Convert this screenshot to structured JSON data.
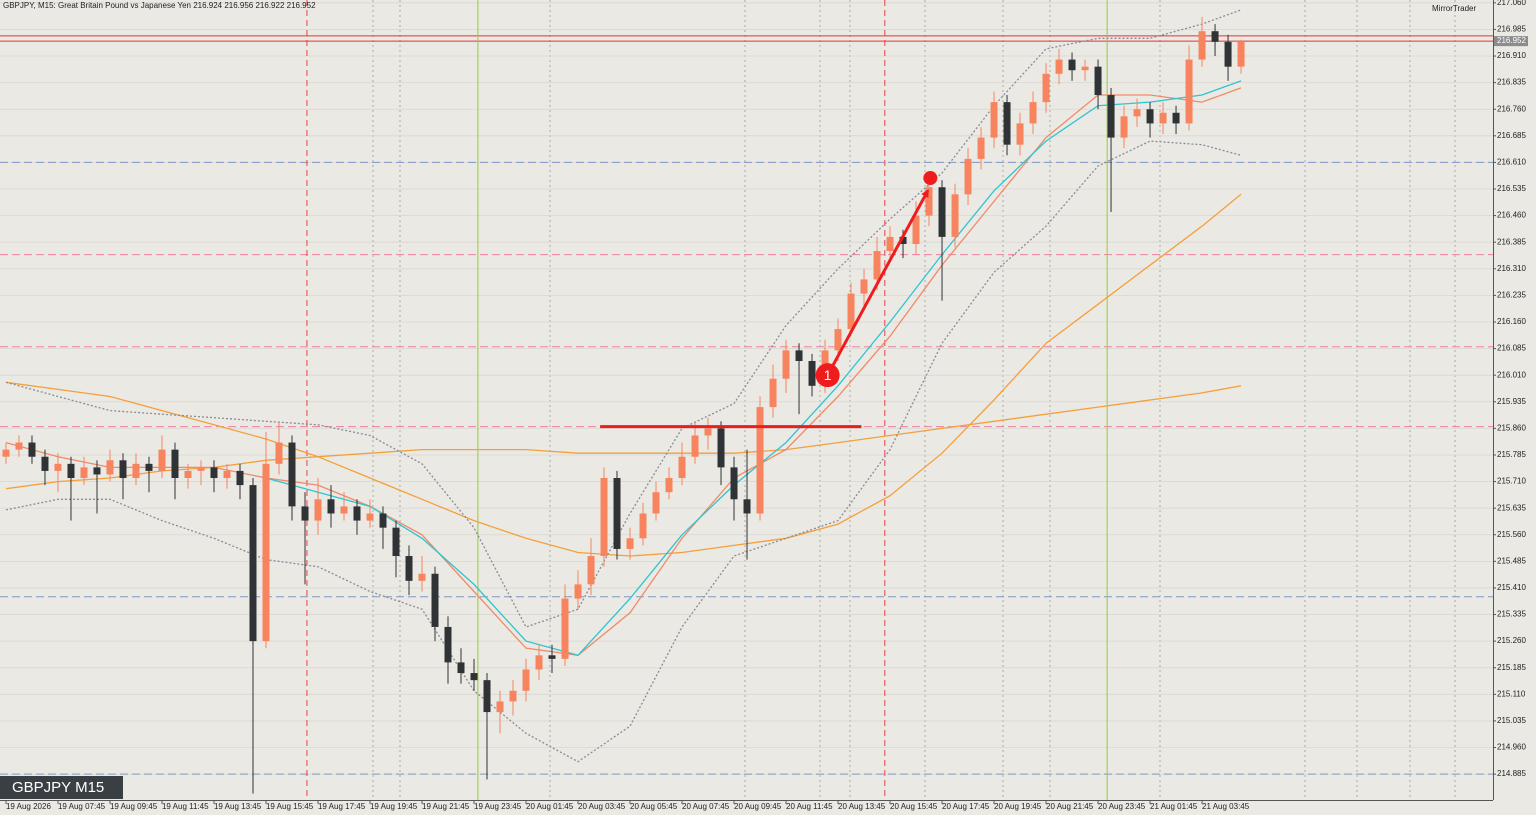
{
  "chart_data": {
    "type": "candlestick",
    "title": "GBPJPY, M15:  Great Britain Pound vs Japanese Yen  216.924 216.956 216.922 216.952",
    "platform": "MirrorTrader",
    "badge": "GBPJPY M15",
    "up_color": "#f7845e",
    "down_color": "#2f3336",
    "xlim": [
      -0.46,
      114.38
    ],
    "ylim": [
      214.812,
      217.068
    ],
    "yticks": [
      {
        "value": 217.06,
        "label": "217.060"
      },
      216.985,
      {
        "value": 216.91,
        "label": "216.910"
      },
      216.835,
      {
        "value": 216.76,
        "label": "216.760"
      },
      216.685,
      {
        "value": 216.61,
        "label": "216.610"
      },
      216.535,
      {
        "value": 216.46,
        "label": "216.460"
      },
      216.385,
      {
        "value": 216.31,
        "label": "216.310"
      },
      216.235,
      {
        "value": 216.16,
        "label": "216.160"
      },
      216.085,
      {
        "value": 216.01,
        "label": "216.010"
      },
      215.935,
      {
        "value": 215.86,
        "label": "215.860"
      },
      215.785,
      {
        "value": 215.71,
        "label": "215.710"
      },
      215.635,
      {
        "value": 215.56,
        "label": "215.560"
      },
      215.485,
      {
        "value": 215.41,
        "label": "215.410"
      },
      215.335,
      {
        "value": 215.26,
        "label": "215.260"
      },
      215.185,
      {
        "value": 215.11,
        "label": "215.110"
      },
      215.035,
      {
        "value": 214.96,
        "label": "214.960"
      },
      214.885
    ],
    "xticks": [
      {
        "value": 0,
        "label": "19 Aug 2026"
      },
      {
        "value": 4,
        "label": "19 Aug 07:45"
      },
      {
        "value": 8,
        "label": "19 Aug 09:45"
      },
      {
        "value": 12,
        "label": "19 Aug 11:45"
      },
      {
        "value": 16,
        "label": "19 Aug 13:45"
      },
      {
        "value": 20,
        "label": "19 Aug 15:45"
      },
      {
        "value": 24,
        "label": "19 Aug 17:45"
      },
      {
        "value": 28,
        "label": "19 Aug 19:45"
      },
      {
        "value": 32,
        "label": "19 Aug 21:45"
      },
      {
        "value": 36,
        "label": "19 Aug 23:45"
      },
      {
        "value": 40,
        "label": "20 Aug 01:45"
      },
      {
        "value": 44,
        "label": "20 Aug 03:45"
      },
      {
        "value": 48,
        "label": "20 Aug 05:45"
      },
      {
        "value": 52,
        "label": "20 Aug 07:45"
      },
      {
        "value": 56,
        "label": "20 Aug 09:45"
      },
      {
        "value": 60,
        "label": "20 Aug 11:45"
      },
      {
        "value": 64,
        "label": "20 Aug 13:45"
      },
      {
        "value": 68,
        "label": "20 Aug 15:45"
      },
      {
        "value": 72,
        "label": "20 Aug 17:45"
      },
      {
        "value": 76,
        "label": "20 Aug 19:45"
      },
      {
        "value": 80,
        "label": "20 Aug 21:45"
      },
      {
        "value": 84,
        "label": "20 Aug 23:45"
      },
      {
        "value": 88,
        "label": "21 Aug 01:45"
      },
      {
        "value": 92,
        "label": "21 Aug 03:45"
      }
    ],
    "candles": [
      [
        215.78,
        215.82,
        215.76,
        215.8
      ],
      [
        215.8,
        215.84,
        215.78,
        215.82
      ],
      [
        215.82,
        215.84,
        215.76,
        215.78
      ],
      [
        215.78,
        215.8,
        215.7,
        215.74
      ],
      [
        215.74,
        215.79,
        215.68,
        215.76
      ],
      [
        215.76,
        215.78,
        215.6,
        215.72
      ],
      [
        215.72,
        215.78,
        215.7,
        215.75
      ],
      [
        215.75,
        215.77,
        215.62,
        215.73
      ],
      [
        215.73,
        215.8,
        215.71,
        215.77
      ],
      [
        215.77,
        215.79,
        215.66,
        215.72
      ],
      [
        215.72,
        215.79,
        215.7,
        215.76
      ],
      [
        215.76,
        215.78,
        215.68,
        215.74
      ],
      [
        215.74,
        215.84,
        215.72,
        215.8
      ],
      [
        215.8,
        215.82,
        215.66,
        215.72
      ],
      [
        215.72,
        215.76,
        215.69,
        215.74
      ],
      [
        215.74,
        215.77,
        215.7,
        215.75
      ],
      [
        215.75,
        215.77,
        215.68,
        215.72
      ],
      [
        215.72,
        215.76,
        215.69,
        215.74
      ],
      [
        215.74,
        215.76,
        215.66,
        215.7
      ],
      [
        215.7,
        215.72,
        214.83,
        215.26
      ],
      [
        215.26,
        215.85,
        215.24,
        215.76
      ],
      [
        215.76,
        215.88,
        215.73,
        215.82
      ],
      [
        215.82,
        215.84,
        215.6,
        215.64
      ],
      [
        215.64,
        215.68,
        215.42,
        215.6
      ],
      [
        215.6,
        215.72,
        215.56,
        215.66
      ],
      [
        215.66,
        215.7,
        215.58,
        215.62
      ],
      [
        215.62,
        215.68,
        215.6,
        215.64
      ],
      [
        215.64,
        215.66,
        215.56,
        215.6
      ],
      [
        215.6,
        215.66,
        215.58,
        215.62
      ],
      [
        215.62,
        215.64,
        215.52,
        215.58
      ],
      [
        215.58,
        215.6,
        215.44,
        215.5
      ],
      [
        215.5,
        215.53,
        215.39,
        215.43
      ],
      [
        215.43,
        215.5,
        215.4,
        215.45
      ],
      [
        215.45,
        215.47,
        215.26,
        215.3
      ],
      [
        215.3,
        215.33,
        215.14,
        215.2
      ],
      [
        215.2,
        215.24,
        215.14,
        215.17
      ],
      [
        215.17,
        215.21,
        215.12,
        215.15
      ],
      [
        215.15,
        215.17,
        214.87,
        215.06
      ],
      [
        215.06,
        215.12,
        215.0,
        215.09
      ],
      [
        215.09,
        215.15,
        215.05,
        215.12
      ],
      [
        215.12,
        215.21,
        215.09,
        215.18
      ],
      [
        215.18,
        215.25,
        215.15,
        215.22
      ],
      [
        215.22,
        215.25,
        215.17,
        215.21
      ],
      [
        215.21,
        215.42,
        215.19,
        215.38
      ],
      [
        215.38,
        215.46,
        215.35,
        215.42
      ],
      [
        215.42,
        215.55,
        215.39,
        215.5
      ],
      [
        215.5,
        215.75,
        215.47,
        215.72
      ],
      [
        215.72,
        215.74,
        215.49,
        215.52
      ],
      [
        215.52,
        215.58,
        215.49,
        215.55
      ],
      [
        215.55,
        215.65,
        215.53,
        215.62
      ],
      [
        215.62,
        215.71,
        215.6,
        215.68
      ],
      [
        215.68,
        215.75,
        215.66,
        215.72
      ],
      [
        215.72,
        215.82,
        215.7,
        215.78
      ],
      [
        215.78,
        215.88,
        215.76,
        215.84
      ],
      [
        215.84,
        215.89,
        215.8,
        215.86
      ],
      [
        215.86,
        215.88,
        215.7,
        215.75
      ],
      [
        215.75,
        215.78,
        215.6,
        215.66
      ],
      [
        215.66,
        215.8,
        215.49,
        215.62
      ],
      [
        215.62,
        215.95,
        215.6,
        215.92
      ],
      [
        215.92,
        216.04,
        215.89,
        216.0
      ],
      [
        216.0,
        216.11,
        215.96,
        216.08
      ],
      [
        216.08,
        216.1,
        215.9,
        216.05
      ],
      [
        216.05,
        216.07,
        215.95,
        215.98
      ],
      [
        215.98,
        216.11,
        215.96,
        216.08
      ],
      [
        216.08,
        216.17,
        216.05,
        216.14
      ],
      [
        216.14,
        216.27,
        216.12,
        216.24
      ],
      [
        216.24,
        216.31,
        216.2,
        216.28
      ],
      [
        216.28,
        216.4,
        216.25,
        216.36
      ],
      [
        216.36,
        216.43,
        216.33,
        216.4
      ],
      [
        216.4,
        216.42,
        216.34,
        216.38
      ],
      [
        216.38,
        216.5,
        216.35,
        216.46
      ],
      [
        216.46,
        216.57,
        216.43,
        216.54
      ],
      [
        216.54,
        216.56,
        216.22,
        216.4
      ],
      [
        216.4,
        216.55,
        216.37,
        216.52
      ],
      [
        216.52,
        216.65,
        216.49,
        216.62
      ],
      [
        216.62,
        216.71,
        216.59,
        216.68
      ],
      [
        216.68,
        216.81,
        216.65,
        216.78
      ],
      [
        216.78,
        216.8,
        216.63,
        216.66
      ],
      [
        216.66,
        216.75,
        216.63,
        216.72
      ],
      [
        216.72,
        216.81,
        216.69,
        216.78
      ],
      [
        216.78,
        216.89,
        216.75,
        216.86
      ],
      [
        216.86,
        216.93,
        216.83,
        216.9
      ],
      [
        216.9,
        216.92,
        216.84,
        216.87
      ],
      [
        216.87,
        216.9,
        216.84,
        216.88
      ],
      [
        216.88,
        216.9,
        216.76,
        216.8
      ],
      [
        216.8,
        216.82,
        216.47,
        216.68
      ],
      [
        216.68,
        216.77,
        216.65,
        216.74
      ],
      [
        216.74,
        216.79,
        216.71,
        216.76
      ],
      [
        216.76,
        216.78,
        216.68,
        216.72
      ],
      [
        216.72,
        216.78,
        216.69,
        216.75
      ],
      [
        216.75,
        216.77,
        216.69,
        216.72
      ],
      [
        216.72,
        216.94,
        216.7,
        216.9
      ],
      [
        216.9,
        217.02,
        216.88,
        216.98
      ],
      [
        216.98,
        217.0,
        216.91,
        216.95
      ],
      [
        216.95,
        216.97,
        216.84,
        216.88
      ],
      [
        216.88,
        216.956,
        216.86,
        216.952
      ]
    ],
    "indicators": [
      {
        "color": "#f4a03a",
        "dash": "",
        "x": [
          0,
          4,
          8,
          12,
          16,
          20,
          24,
          28,
          32,
          36,
          40,
          44,
          48,
          52,
          56,
          60,
          64,
          68,
          72,
          76,
          80,
          84,
          88,
          92,
          95
        ],
        "values": [
          215.99,
          215.97,
          215.95,
          215.91,
          215.87,
          215.83,
          215.78,
          215.72,
          215.66,
          215.6,
          215.55,
          215.51,
          215.5,
          215.51,
          215.53,
          215.55,
          215.59,
          215.67,
          215.79,
          215.94,
          216.1,
          216.21,
          216.32,
          216.43,
          216.52
        ]
      },
      {
        "color": "#f4a03a",
        "dash": "",
        "x": [
          0,
          4,
          8,
          12,
          16,
          20,
          24,
          28,
          32,
          36,
          40,
          44,
          48,
          52,
          56,
          60,
          64,
          68,
          72,
          76,
          80,
          84,
          88,
          92,
          95
        ],
        "values": [
          215.69,
          215.71,
          215.72,
          215.74,
          215.75,
          215.77,
          215.78,
          215.79,
          215.8,
          215.8,
          215.8,
          215.79,
          215.79,
          215.79,
          215.79,
          215.8,
          215.82,
          215.84,
          215.86,
          215.88,
          215.9,
          215.92,
          215.94,
          215.96,
          215.98
        ]
      },
      {
        "color": "#f08a6a",
        "dash": "",
        "x": [
          0,
          4,
          8,
          12,
          16,
          20,
          24,
          28,
          32,
          36,
          40,
          44,
          48,
          52,
          56,
          60,
          64,
          68,
          72,
          76,
          80,
          84,
          88,
          92,
          95
        ],
        "values": [
          215.82,
          215.78,
          215.75,
          215.75,
          215.75,
          215.72,
          215.7,
          215.64,
          215.56,
          215.4,
          215.24,
          215.22,
          215.34,
          215.55,
          215.72,
          215.8,
          215.95,
          216.12,
          216.32,
          216.5,
          216.68,
          216.8,
          216.8,
          216.78,
          216.82
        ]
      },
      {
        "color": "#2ec4d0",
        "dash": "",
        "x": [
          20,
          24,
          28,
          32,
          36,
          40,
          44,
          48,
          52,
          56,
          60,
          64,
          68,
          72,
          76,
          80,
          84,
          88,
          92,
          95
        ],
        "values": [
          215.72,
          215.68,
          215.64,
          215.55,
          215.42,
          215.26,
          215.22,
          215.38,
          215.56,
          215.7,
          215.82,
          215.98,
          216.16,
          216.35,
          216.53,
          216.67,
          216.77,
          216.78,
          216.8,
          216.84
        ]
      },
      {
        "color": "#8a8a9a",
        "dash": "2 2",
        "x": [
          0,
          4,
          8,
          12,
          16,
          20,
          24,
          28,
          32,
          36,
          40,
          44,
          48,
          52,
          56,
          60,
          64,
          68,
          72,
          76,
          80,
          84,
          88,
          92,
          95
        ],
        "values": [
          215.99,
          215.95,
          215.91,
          215.9,
          215.89,
          215.88,
          215.87,
          215.84,
          215.76,
          215.58,
          215.3,
          215.35,
          215.62,
          215.86,
          215.93,
          216.15,
          216.31,
          216.45,
          216.58,
          216.77,
          216.93,
          216.96,
          216.96,
          217.0,
          217.04
        ]
      },
      {
        "color": "#8a8a9a",
        "dash": "2 2",
        "x": [
          0,
          4,
          8,
          12,
          16,
          20,
          24,
          28,
          32,
          36,
          40,
          44,
          48,
          52,
          56,
          60,
          64,
          68,
          72,
          76,
          80,
          84,
          88,
          92,
          95
        ],
        "values": [
          215.63,
          215.66,
          215.66,
          215.6,
          215.55,
          215.49,
          215.47,
          215.4,
          215.35,
          215.12,
          215.0,
          214.92,
          215.02,
          215.3,
          215.5,
          215.55,
          215.6,
          215.8,
          216.1,
          216.3,
          216.43,
          216.6,
          216.67,
          216.66,
          216.63
        ]
      }
    ],
    "levels": [
      {
        "value": 216.61,
        "color": "#7f97c4",
        "dash": "8 4"
      },
      {
        "value": 215.385,
        "color": "#7f97c4",
        "dash": "8 4"
      },
      {
        "value": 214.885,
        "color": "#7f97c4",
        "dash": "8 4"
      },
      {
        "value": 216.35,
        "color": "#ec7fa0",
        "dash": "8 4"
      },
      {
        "value": 216.09,
        "color": "#ec7fa0",
        "dash": "8 4"
      },
      {
        "value": 215.865,
        "color": "#ec7fa0",
        "dash": "8 4"
      },
      {
        "value": 216.967,
        "color": "#e03434",
        "dash": ""
      },
      {
        "value": 216.952,
        "color": "#e03434",
        "dash": ""
      }
    ],
    "vlines": [
      {
        "value": 23.15,
        "color": "#e8404a",
        "dash": "6 4"
      },
      {
        "value": 67.6,
        "color": "#e8404a",
        "dash": "6 4"
      },
      {
        "value": 36.3,
        "color": "#9ac840",
        "dash": ""
      },
      {
        "value": 84.7,
        "color": "#9ac840",
        "dash": ""
      }
    ],
    "price_tag": {
      "value": 216.952,
      "label": "216.952"
    },
    "annotations": {
      "support": {
        "x": [
          45.7,
          65.8
        ],
        "y": 215.865
      },
      "arrow": {
        "x": [
          63.2,
          70.9
        ],
        "y": [
          216.01,
          216.53
        ]
      },
      "target": {
        "x": 71.1,
        "y": 216.566
      },
      "marker": {
        "x": 63.2,
        "y": 216.01,
        "label": "1"
      }
    }
  }
}
